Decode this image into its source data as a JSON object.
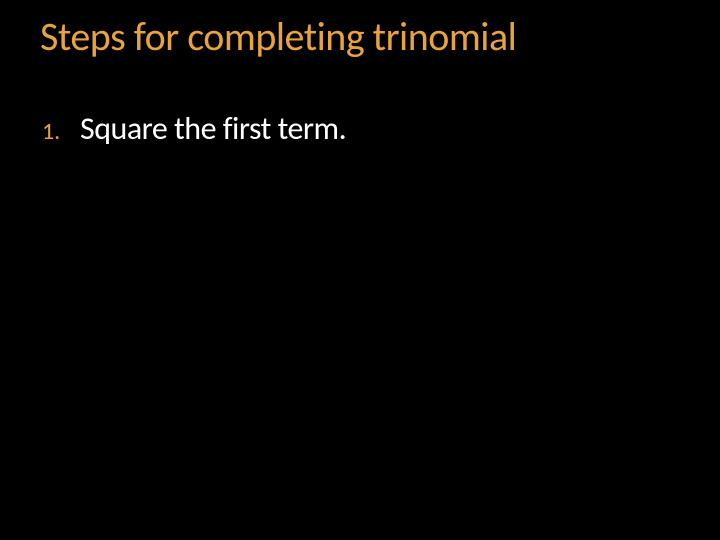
{
  "slide": {
    "title": "Steps for completing trinomial",
    "background_color": "#000000",
    "title_color": "#e8a33d",
    "title_fontsize": 40,
    "list_number_color": "#e8a33d",
    "list_text_color": "#ffffff",
    "list_number_fontsize": 24,
    "list_text_fontsize": 32,
    "items": [
      {
        "number": "1.",
        "text": "Square the first term."
      }
    ]
  }
}
